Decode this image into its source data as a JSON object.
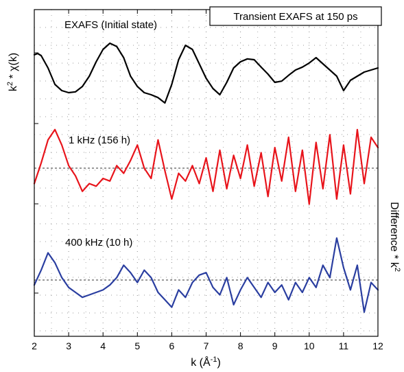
{
  "chart_data": {
    "type": "line",
    "title_box": "Transient EXAFS at 150 ps",
    "xlabel": "k (Å",
    "xlabel_sup": "-1",
    "xlabel_close": ")",
    "ylabel_left": "k",
    "ylabel_left_sup": "2",
    "ylabel_left_rest": " * χ(k)",
    "ylabel_right": "Difference * k",
    "ylabel_right_sup": "2",
    "xlim": [
      2,
      12
    ],
    "x_ticks": [
      "2",
      "3",
      "4",
      "5",
      "6",
      "7",
      "8",
      "9",
      "10",
      "11",
      "12"
    ],
    "grid": "dotted",
    "colors": {
      "black": "#000000",
      "red": "#e8141b",
      "blue": "#2a3ea0"
    },
    "series": [
      {
        "name": "EXAFS (Initial state)",
        "color": "#000000",
        "x": [
          2.0,
          2.1,
          2.2,
          2.4,
          2.6,
          2.8,
          3.0,
          3.2,
          3.4,
          3.6,
          3.8,
          4.0,
          4.2,
          4.4,
          4.6,
          4.8,
          5.0,
          5.2,
          5.4,
          5.6,
          5.8,
          6.0,
          6.2,
          6.4,
          6.6,
          6.8,
          7.0,
          7.2,
          7.4,
          7.6,
          7.8,
          8.0,
          8.2,
          8.4,
          8.6,
          8.8,
          9.0,
          9.2,
          9.4,
          9.6,
          9.8,
          10.0,
          10.2,
          10.4,
          10.6,
          10.8,
          11.0,
          11.2,
          11.4,
          11.6,
          11.8,
          12.0
        ],
        "y": [
          0.42,
          0.45,
          0.4,
          0.1,
          -0.3,
          -0.45,
          -0.5,
          -0.48,
          -0.35,
          -0.1,
          0.25,
          0.55,
          0.7,
          0.62,
          0.35,
          -0.1,
          -0.35,
          -0.5,
          -0.55,
          -0.62,
          -0.75,
          -0.3,
          0.3,
          0.65,
          0.55,
          0.2,
          -0.15,
          -0.4,
          -0.55,
          -0.25,
          0.1,
          0.25,
          0.32,
          0.3,
          0.12,
          -0.05,
          -0.25,
          -0.22,
          -0.08,
          0.05,
          0.12,
          0.22,
          0.35,
          0.2,
          0.05,
          -0.1,
          -0.45,
          -0.2,
          -0.1,
          0.0,
          0.05,
          0.1
        ]
      },
      {
        "name": "1 kHz (156 h)",
        "color": "#e8141b",
        "x": [
          2.0,
          2.2,
          2.4,
          2.6,
          2.8,
          3.0,
          3.2,
          3.4,
          3.6,
          3.8,
          4.0,
          4.2,
          4.4,
          4.6,
          4.8,
          5.0,
          5.2,
          5.4,
          5.6,
          5.8,
          6.0,
          6.2,
          6.4,
          6.6,
          6.8,
          7.0,
          7.2,
          7.4,
          7.6,
          7.8,
          8.0,
          8.2,
          8.4,
          8.6,
          8.8,
          9.0,
          9.2,
          9.4,
          9.6,
          9.8,
          10.0,
          10.2,
          10.4,
          10.6,
          10.8,
          11.0,
          11.2,
          11.4,
          11.6,
          11.8,
          12.0
        ],
        "y": [
          -0.3,
          0.1,
          0.55,
          0.75,
          0.45,
          0.05,
          -0.15,
          -0.45,
          -0.3,
          -0.35,
          -0.2,
          -0.25,
          0.05,
          -0.1,
          0.15,
          0.45,
          0.0,
          -0.2,
          0.55,
          -0.05,
          -0.6,
          -0.1,
          -0.25,
          0.05,
          -0.3,
          0.2,
          -0.45,
          0.35,
          -0.4,
          0.25,
          -0.2,
          0.45,
          -0.35,
          0.3,
          -0.55,
          0.4,
          -0.25,
          0.6,
          -0.45,
          0.35,
          -0.7,
          0.5,
          -0.4,
          0.65,
          -0.6,
          0.45,
          -0.5,
          0.75,
          -0.3,
          0.6,
          0.4
        ]
      },
      {
        "name": "400 kHz (10 h)",
        "color": "#2a3ea0",
        "x": [
          2.0,
          2.2,
          2.4,
          2.6,
          2.8,
          3.0,
          3.2,
          3.4,
          3.6,
          3.8,
          4.0,
          4.2,
          4.4,
          4.6,
          4.8,
          5.0,
          5.2,
          5.4,
          5.6,
          5.8,
          6.0,
          6.2,
          6.4,
          6.6,
          6.8,
          7.0,
          7.2,
          7.4,
          7.6,
          7.8,
          8.0,
          8.2,
          8.4,
          8.6,
          8.8,
          9.0,
          9.2,
          9.4,
          9.6,
          9.8,
          10.0,
          10.2,
          10.4,
          10.6,
          10.8,
          11.0,
          11.2,
          11.4,
          11.6,
          11.8,
          12.0
        ],
        "y": [
          -0.1,
          0.2,
          0.55,
          0.35,
          0.05,
          -0.15,
          -0.25,
          -0.35,
          -0.3,
          -0.25,
          -0.2,
          -0.1,
          0.05,
          0.3,
          0.15,
          -0.05,
          0.2,
          0.05,
          -0.25,
          -0.4,
          -0.55,
          -0.2,
          -0.35,
          -0.05,
          0.1,
          0.15,
          -0.15,
          -0.3,
          0.05,
          -0.5,
          -0.2,
          0.05,
          -0.15,
          -0.35,
          -0.05,
          -0.25,
          -0.1,
          -0.4,
          -0.05,
          -0.25,
          0.05,
          -0.15,
          0.3,
          0.05,
          0.85,
          0.25,
          -0.2,
          0.3,
          -0.65,
          -0.05,
          -0.2
        ]
      }
    ]
  }
}
